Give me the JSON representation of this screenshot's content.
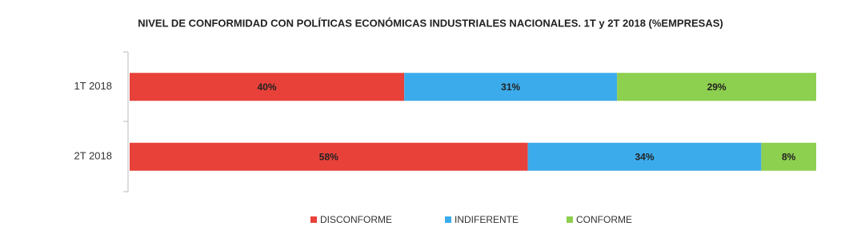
{
  "chart_data": {
    "type": "stacked-bar-horizontal",
    "title": "NIVEL DE CONFORMIDAD CON POLÍTICAS ECONÓMICAS INDUSTRIALES NACIONALES. 1T y 2T 2018 (%EMPRESAS)",
    "categories": [
      "1T 2018",
      "2T 2018"
    ],
    "xlim": [
      0,
      100
    ],
    "series": [
      {
        "name": "DISCONFORME",
        "color": "#e8413a",
        "values": [
          40,
          58
        ],
        "value_labels": [
          "40%",
          "58%"
        ]
      },
      {
        "name": "INDIFERENTE",
        "color": "#3cabeb",
        "values": [
          31,
          34
        ],
        "value_labels": [
          "31%",
          "34%"
        ]
      },
      {
        "name": "CONFORME",
        "color": "#8dcf4f",
        "values": [
          29,
          8
        ],
        "value_labels": [
          "29%",
          "8%"
        ]
      }
    ],
    "legend": "bottom"
  }
}
